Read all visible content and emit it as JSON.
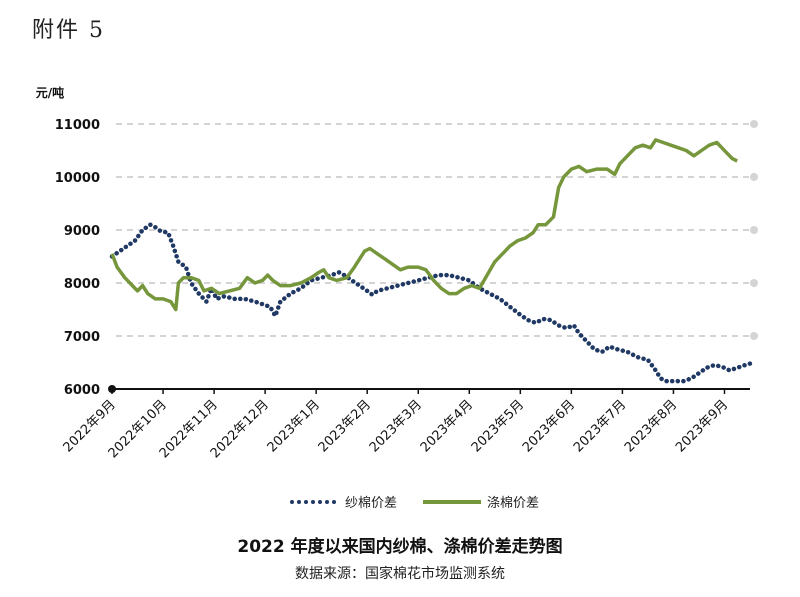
{
  "attachment_label": "附件 5",
  "chart_data": {
    "type": "line",
    "title": "2022 年度以来国内纱棉、涤棉价差走势图",
    "source": "数据来源：国家棉花市场监测系统",
    "ylabel": "元/吨",
    "xlabel": "",
    "ylim": [
      6000,
      11000
    ],
    "yticks": [
      6000,
      7000,
      8000,
      9000,
      10000,
      11000
    ],
    "x_tick_labels": [
      "2022年9月",
      "2022年10月",
      "2022年11月",
      "2022年12月",
      "2023年1月",
      "2023年2月",
      "2023年3月",
      "2023年4月",
      "2023年5月",
      "2023年6月",
      "2023年7月",
      "2023年8月",
      "2023年9月"
    ],
    "grid": "horizontal dashed",
    "legend_position": "bottom",
    "series": [
      {
        "name": "纱棉价差",
        "style": "dotted",
        "color": "#1f3864",
        "points": [
          [
            0,
            8500
          ],
          [
            0.15,
            8600
          ],
          [
            0.3,
            8700
          ],
          [
            0.45,
            8800
          ],
          [
            0.6,
            9000
          ],
          [
            0.75,
            9100
          ],
          [
            0.85,
            9050
          ],
          [
            0.95,
            8980
          ],
          [
            1.1,
            8950
          ],
          [
            1.2,
            8700
          ],
          [
            1.3,
            8400
          ],
          [
            1.45,
            8300
          ],
          [
            1.55,
            8000
          ],
          [
            1.7,
            7800
          ],
          [
            1.85,
            7650
          ],
          [
            1.95,
            7900
          ],
          [
            2.05,
            7700
          ],
          [
            2.2,
            7750
          ],
          [
            2.4,
            7700
          ],
          [
            2.6,
            7700
          ],
          [
            2.8,
            7650
          ],
          [
            2.95,
            7600
          ],
          [
            3.1,
            7550
          ],
          [
            3.2,
            7380
          ],
          [
            3.3,
            7650
          ],
          [
            3.5,
            7800
          ],
          [
            3.7,
            7900
          ],
          [
            3.9,
            8050
          ],
          [
            4.1,
            8100
          ],
          [
            4.3,
            8150
          ],
          [
            4.45,
            8200
          ],
          [
            4.55,
            8150
          ],
          [
            4.7,
            8050
          ],
          [
            4.85,
            7950
          ],
          [
            5.0,
            7850
          ],
          [
            5.1,
            7780
          ],
          [
            5.2,
            7850
          ],
          [
            5.4,
            7900
          ],
          [
            5.6,
            7950
          ],
          [
            5.8,
            8000
          ],
          [
            6.0,
            8050
          ],
          [
            6.2,
            8100
          ],
          [
            6.4,
            8150
          ],
          [
            6.6,
            8150
          ],
          [
            6.8,
            8100
          ],
          [
            7.0,
            8050
          ],
          [
            7.2,
            7900
          ],
          [
            7.4,
            7800
          ],
          [
            7.6,
            7700
          ],
          [
            7.8,
            7550
          ],
          [
            8.0,
            7400
          ],
          [
            8.15,
            7300
          ],
          [
            8.3,
            7250
          ],
          [
            8.45,
            7320
          ],
          [
            8.6,
            7300
          ],
          [
            8.75,
            7200
          ],
          [
            8.9,
            7150
          ],
          [
            9.05,
            7200
          ],
          [
            9.15,
            7050
          ],
          [
            9.3,
            6900
          ],
          [
            9.45,
            6750
          ],
          [
            9.6,
            6700
          ],
          [
            9.75,
            6800
          ],
          [
            9.9,
            6750
          ],
          [
            10.1,
            6700
          ],
          [
            10.3,
            6600
          ],
          [
            10.5,
            6550
          ],
          [
            10.65,
            6350
          ],
          [
            10.75,
            6200
          ],
          [
            10.85,
            6150
          ],
          [
            11.0,
            6150
          ],
          [
            11.2,
            6150
          ],
          [
            11.35,
            6200
          ],
          [
            11.5,
            6300
          ],
          [
            11.65,
            6400
          ],
          [
            11.8,
            6450
          ],
          [
            11.95,
            6420
          ],
          [
            12.1,
            6350
          ],
          [
            12.25,
            6400
          ],
          [
            12.4,
            6450
          ],
          [
            12.5,
            6480
          ]
        ]
      },
      {
        "name": "涤棉价差",
        "style": "solid",
        "color": "#76963b",
        "points": [
          [
            0,
            8550
          ],
          [
            0.1,
            8300
          ],
          [
            0.25,
            8100
          ],
          [
            0.4,
            7950
          ],
          [
            0.5,
            7850
          ],
          [
            0.6,
            7950
          ],
          [
            0.7,
            7800
          ],
          [
            0.85,
            7700
          ],
          [
            1.0,
            7700
          ],
          [
            1.15,
            7650
          ],
          [
            1.25,
            7500
          ],
          [
            1.3,
            8000
          ],
          [
            1.4,
            8100
          ],
          [
            1.55,
            8100
          ],
          [
            1.7,
            8050
          ],
          [
            1.8,
            7850
          ],
          [
            1.95,
            7900
          ],
          [
            2.1,
            7800
          ],
          [
            2.3,
            7850
          ],
          [
            2.5,
            7900
          ],
          [
            2.65,
            8100
          ],
          [
            2.8,
            8000
          ],
          [
            2.95,
            8050
          ],
          [
            3.05,
            8150
          ],
          [
            3.15,
            8050
          ],
          [
            3.3,
            7950
          ],
          [
            3.5,
            7950
          ],
          [
            3.7,
            8000
          ],
          [
            3.9,
            8100
          ],
          [
            4.05,
            8200
          ],
          [
            4.15,
            8250
          ],
          [
            4.25,
            8100
          ],
          [
            4.4,
            8050
          ],
          [
            4.6,
            8100
          ],
          [
            4.75,
            8300
          ],
          [
            4.85,
            8450
          ],
          [
            4.95,
            8600
          ],
          [
            5.05,
            8650
          ],
          [
            5.2,
            8550
          ],
          [
            5.35,
            8450
          ],
          [
            5.5,
            8350
          ],
          [
            5.65,
            8250
          ],
          [
            5.8,
            8300
          ],
          [
            6.0,
            8300
          ],
          [
            6.15,
            8250
          ],
          [
            6.3,
            8050
          ],
          [
            6.45,
            7900
          ],
          [
            6.6,
            7800
          ],
          [
            6.75,
            7800
          ],
          [
            6.9,
            7900
          ],
          [
            7.05,
            7950
          ],
          [
            7.2,
            7900
          ],
          [
            7.35,
            8150
          ],
          [
            7.5,
            8400
          ],
          [
            7.65,
            8550
          ],
          [
            7.8,
            8700
          ],
          [
            7.95,
            8800
          ],
          [
            8.1,
            8850
          ],
          [
            8.25,
            8950
          ],
          [
            8.35,
            9100
          ],
          [
            8.5,
            9100
          ],
          [
            8.65,
            9250
          ],
          [
            8.75,
            9800
          ],
          [
            8.85,
            10000
          ],
          [
            9.0,
            10150
          ],
          [
            9.15,
            10200
          ],
          [
            9.3,
            10100
          ],
          [
            9.5,
            10150
          ],
          [
            9.7,
            10150
          ],
          [
            9.85,
            10050
          ],
          [
            9.95,
            10250
          ],
          [
            10.1,
            10400
          ],
          [
            10.25,
            10550
          ],
          [
            10.4,
            10600
          ],
          [
            10.55,
            10550
          ],
          [
            10.65,
            10700
          ],
          [
            10.8,
            10650
          ],
          [
            10.95,
            10600
          ],
          [
            11.1,
            10550
          ],
          [
            11.25,
            10500
          ],
          [
            11.4,
            10400
          ],
          [
            11.55,
            10500
          ],
          [
            11.7,
            10600
          ],
          [
            11.85,
            10650
          ],
          [
            11.95,
            10550
          ],
          [
            12.05,
            10450
          ],
          [
            12.15,
            10350
          ],
          [
            12.25,
            10300
          ]
        ]
      }
    ]
  }
}
